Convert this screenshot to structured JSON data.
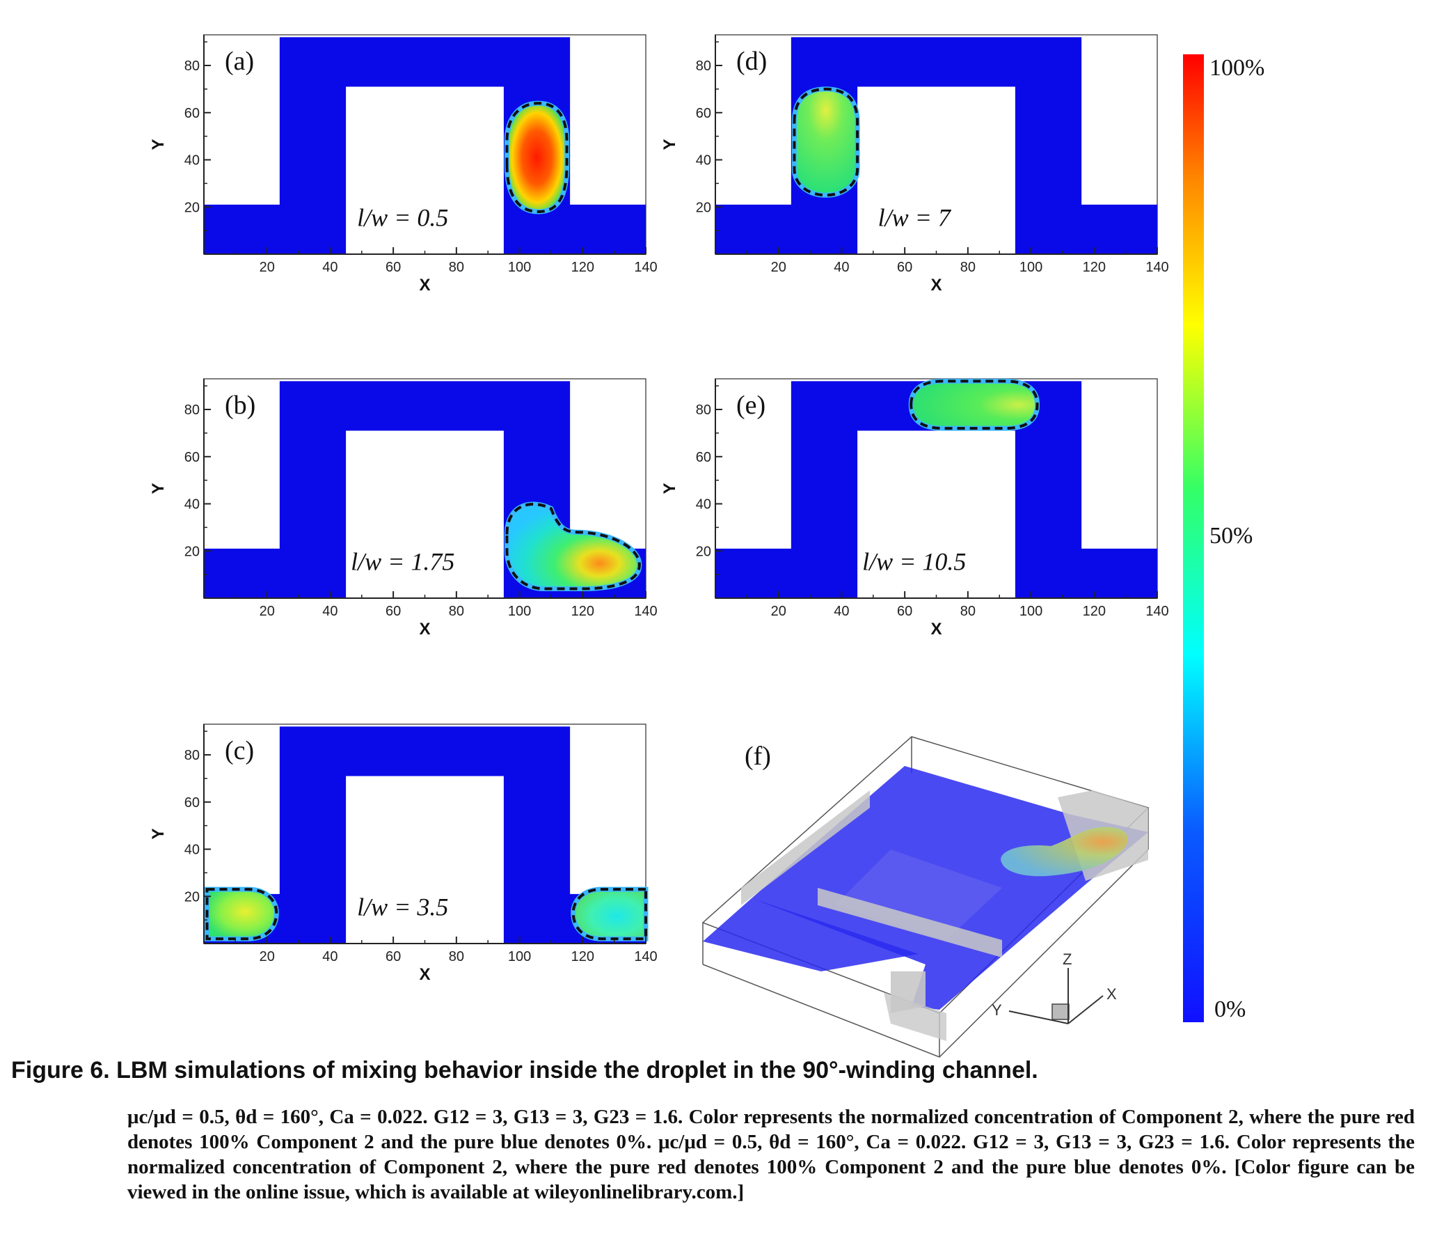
{
  "figure": {
    "panels": [
      {
        "label": "(a)",
        "ratio": "l/w = 0.5"
      },
      {
        "label": "(b)",
        "ratio": "l/w = 1.75"
      },
      {
        "label": "(c)",
        "ratio": "l/w = 3.5"
      },
      {
        "label": "(d)",
        "ratio": "l/w = 7"
      },
      {
        "label": "(e)",
        "ratio": "l/w = 10.5"
      },
      {
        "label": "(f)"
      }
    ],
    "axes": {
      "xlabel": "X",
      "ylabel": "Y",
      "xticks": [
        "20",
        "40",
        "60",
        "80",
        "100",
        "120",
        "140"
      ],
      "yticks": [
        "20",
        "40",
        "60",
        "80"
      ],
      "xlim": [
        0,
        140
      ],
      "ylim": [
        0,
        93
      ]
    },
    "panel_f_axes": {
      "z": "Z",
      "x": "X",
      "y": "Y"
    },
    "colorbar": {
      "max_label": "100%",
      "mid_label": "50%",
      "min_label": "0%"
    },
    "colors": {
      "channel": "#0a0ae8",
      "background": "#ffffff",
      "droplet_outline": "#111111"
    }
  },
  "caption": {
    "title": "Figure 6. LBM simulations of mixing behavior inside the droplet in the 90°-winding channel.",
    "params": "μc/μd = 0.5, θd = 160°, Ca = 0.022. G12 = 3, G13 = 3, G23 = 1.6.",
    "text1": "Color represents the normalized concentration of Component 2, where the pure red denotes 100% Component 2 and the pure blue denotes 0%.",
    "text2": "Color represents the normalized concentration of Component 2, where the pure red denotes 100% Component 2 and the pure blue denotes 0%. [Color figure can be viewed in the online issue, which is available at wileyonlinelibrary.com.]"
  }
}
